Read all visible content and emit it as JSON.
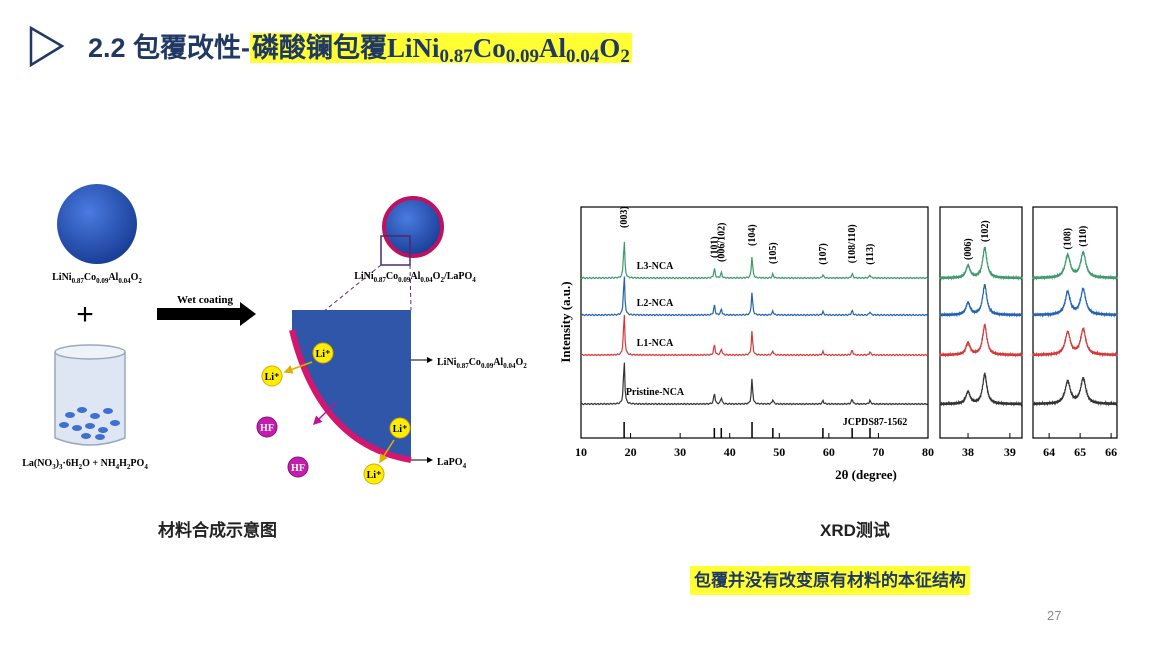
{
  "header": {
    "prefix": "2.2 包覆改性-",
    "highlight": "磷酸镧包覆",
    "formula": [
      "LiNi",
      "0.87",
      "Co",
      "0.09",
      "Al",
      "0.04",
      "O",
      "2"
    ]
  },
  "synthesis": {
    "ncm_label": [
      "LiNi",
      "0.87",
      "Co",
      "0.09",
      "Al",
      "0.04",
      "O",
      "2"
    ],
    "plus": "+",
    "precursor_label": [
      "La(NO",
      "3",
      ")",
      "3",
      "·6H",
      "2",
      "O + NH",
      "4",
      "H",
      "2",
      "PO",
      "4"
    ],
    "process": "Wet coating",
    "coated_label": [
      "LiNi",
      "0.87",
      "Co",
      "0.09",
      "Al",
      "0.04",
      "O",
      "2",
      "/LaPO",
      "4"
    ],
    "core_label": [
      "LiNi",
      "0.87",
      "Co",
      "0.09",
      "Al",
      "0.04",
      "O",
      "2"
    ],
    "shell_label": [
      "LaPO",
      "4"
    ],
    "ions": [
      "Li⁺",
      "Li⁺",
      "HF",
      "HF",
      "Li⁺",
      "Li⁺"
    ],
    "caption": "材料合成示意图"
  },
  "xrd": {
    "ylabel": "Intensity (a.u.)",
    "xlabel": "2θ (degree)",
    "series": [
      {
        "name": "L3-NCA",
        "color": "#3d9a6c"
      },
      {
        "name": "L2-NCA",
        "color": "#2563b0"
      },
      {
        "name": "L1-NCA",
        "color": "#d23a3a"
      },
      {
        "name": "Pristine-NCA",
        "color": "#333333"
      }
    ],
    "reference": "JCPDS87-1562",
    "panels": [
      {
        "xlim": [
          10,
          80
        ],
        "xticks": [
          10,
          20,
          30,
          40,
          50,
          60,
          70,
          80
        ],
        "peaks": [
          {
            "label": "(003)",
            "x": 18.7,
            "height": 1
          },
          {
            "label": "(101)",
            "x": 36.9,
            "height": 0.25
          },
          {
            "label": "(006/102)",
            "x": 38.3,
            "height": 0.15
          },
          {
            "label": "(104)",
            "x": 44.5,
            "height": 0.55
          },
          {
            "label": "(105)",
            "x": 48.7,
            "height": 0.1
          },
          {
            "label": "(107)",
            "x": 58.8,
            "height": 0.08
          },
          {
            "label": "(108/110)",
            "x": 64.7,
            "height": 0.12
          },
          {
            "label": "(113)",
            "x": 68.3,
            "height": 0.08
          }
        ]
      },
      {
        "xlim": [
          37.33,
          39.29
        ],
        "xticks": [
          38,
          39
        ],
        "peaks": [
          {
            "label": "(006)",
            "x": 38.0,
            "height": 0.4
          },
          {
            "label": "(102)",
            "x": 38.4,
            "height": 1
          }
        ]
      },
      {
        "xlim": [
          63.48,
          66.19
        ],
        "xticks": [
          64,
          65,
          66
        ],
        "peaks": [
          {
            "label": "(108)",
            "x": 64.6,
            "height": 0.8
          },
          {
            "label": "(110)",
            "x": 65.1,
            "height": 0.9
          }
        ]
      }
    ],
    "caption": "XRD测试"
  },
  "note": "包覆并没有改变原有材料的本征结构",
  "page_number": "27"
}
